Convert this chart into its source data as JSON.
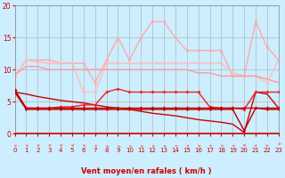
{
  "background_color": "#cceeff",
  "grid_color": "#aaaaaa",
  "xlabel": "Vent moyen/en rafales ( km/h )",
  "xlabel_color": "#cc0000",
  "tick_color": "#cc0000",
  "ylim": [
    0,
    20
  ],
  "xlim": [
    0,
    23
  ],
  "yticks": [
    0,
    5,
    10,
    15,
    20
  ],
  "xticks": [
    0,
    1,
    2,
    3,
    4,
    5,
    6,
    7,
    8,
    9,
    10,
    11,
    12,
    13,
    14,
    15,
    16,
    17,
    18,
    19,
    20,
    21,
    22,
    23
  ],
  "series": [
    {
      "y": [
        9.0,
        11.5,
        11.5,
        11.5,
        11.0,
        11.0,
        11.0,
        8.0,
        11.5,
        15.0,
        11.5,
        15.0,
        17.5,
        17.5,
        15.0,
        13.0,
        13.0,
        13.0,
        13.0,
        9.0,
        9.0,
        17.5,
        13.5,
        11.5
      ],
      "color": "#ffaaaa",
      "lw": 1.0,
      "marker": "D",
      "ms": 2.0,
      "zorder": 2
    },
    {
      "y": [
        9.0,
        11.5,
        11.2,
        11.0,
        11.0,
        11.0,
        6.5,
        6.5,
        11.0,
        11.0,
        11.0,
        11.0,
        11.0,
        11.0,
        11.0,
        11.0,
        11.0,
        11.0,
        11.0,
        9.5,
        9.0,
        9.0,
        8.0,
        11.5
      ],
      "color": "#ffbbbb",
      "lw": 1.0,
      "marker": "D",
      "ms": 2.0,
      "zorder": 2
    },
    {
      "y": [
        9.2,
        10.5,
        10.5,
        10.0,
        10.0,
        10.0,
        10.0,
        10.0,
        10.0,
        10.0,
        10.0,
        10.0,
        10.0,
        10.0,
        10.0,
        10.0,
        9.5,
        9.5,
        9.0,
        9.0,
        9.0,
        9.0,
        8.5,
        8.0
      ],
      "color": "#ff9999",
      "lw": 1.0,
      "marker": null,
      "ms": 0,
      "zorder": 2
    },
    {
      "y": [
        6.8,
        4.0,
        4.0,
        4.0,
        4.2,
        4.2,
        4.5,
        4.5,
        6.5,
        7.0,
        6.5,
        6.5,
        6.5,
        6.5,
        6.5,
        6.5,
        6.5,
        4.2,
        4.0,
        4.0,
        3.8,
        6.5,
        6.5,
        6.5
      ],
      "color": "#ee2222",
      "lw": 1.0,
      "marker": "D",
      "ms": 2.0,
      "zorder": 4
    },
    {
      "y": [
        6.8,
        4.0,
        4.0,
        4.0,
        4.0,
        4.0,
        4.0,
        4.0,
        4.0,
        4.0,
        4.0,
        4.0,
        4.0,
        4.0,
        4.0,
        4.0,
        4.0,
        4.0,
        4.0,
        4.0,
        4.0,
        4.0,
        4.0,
        4.0
      ],
      "color": "#cc0000",
      "lw": 1.0,
      "marker": "D",
      "ms": 2.0,
      "zorder": 5
    },
    {
      "y": [
        6.5,
        6.2,
        5.8,
        5.5,
        5.2,
        5.0,
        4.8,
        4.5,
        4.2,
        4.0,
        3.8,
        3.5,
        3.2,
        3.0,
        2.8,
        2.5,
        2.2,
        2.0,
        1.8,
        1.5,
        0.2,
        6.5,
        6.2,
        4.0
      ],
      "color": "#cc0000",
      "lw": 1.0,
      "marker": null,
      "ms": 0,
      "zorder": 3
    },
    {
      "y": [
        6.5,
        3.8,
        3.8,
        3.8,
        3.8,
        3.8,
        3.8,
        3.8,
        3.8,
        3.8,
        3.8,
        3.8,
        3.8,
        3.8,
        3.8,
        3.8,
        3.8,
        3.8,
        3.8,
        3.8,
        0.5,
        4.0,
        3.8,
        3.8
      ],
      "color": "#bb0000",
      "lw": 1.0,
      "marker": "D",
      "ms": 1.5,
      "zorder": 5
    }
  ],
  "wind_arrows": {
    "color": "#dd7777",
    "x_positions": [
      0,
      1,
      2,
      3,
      4,
      5,
      6,
      7,
      8,
      9,
      10,
      11,
      12,
      13,
      14,
      15,
      16,
      17,
      18,
      19,
      20,
      21,
      22,
      23
    ],
    "angles_deg": [
      225,
      230,
      235,
      240,
      245,
      240,
      235,
      225,
      205,
      205,
      205,
      210,
      210,
      210,
      215,
      220,
      225,
      225,
      225,
      225,
      270,
      10,
      350,
      340
    ]
  }
}
